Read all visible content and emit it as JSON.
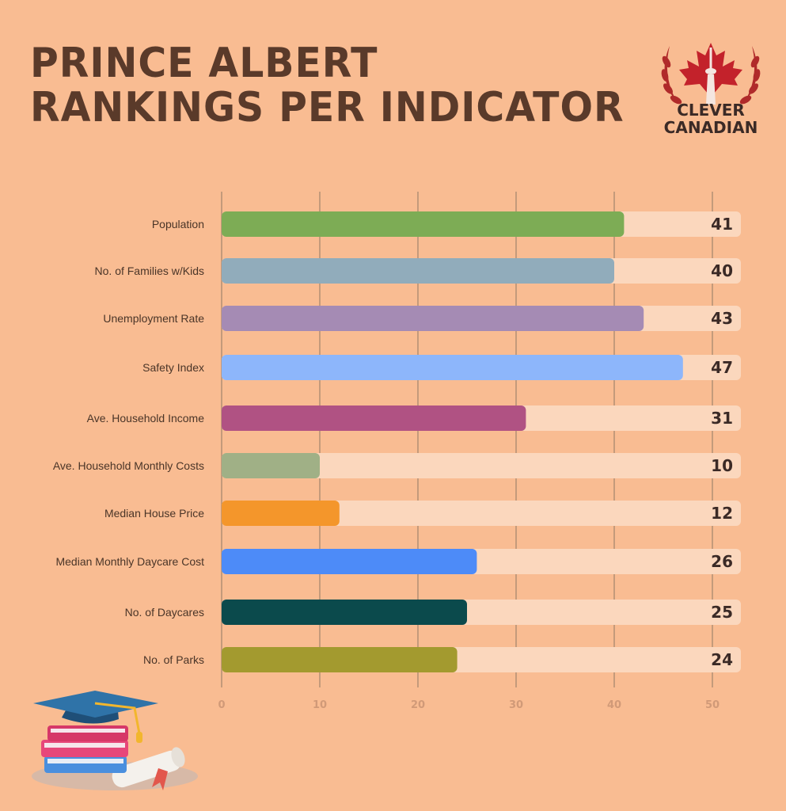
{
  "title": {
    "line1": "PRINCE ALBERT",
    "line2": "RANKINGS PER INDICATOR"
  },
  "logo": {
    "line1": "CLEVER",
    "line2": "CANADIAN",
    "icon": "maple-leaf-cn-tower-icon"
  },
  "colors": {
    "background": "#f9bc92",
    "track": "#fbd7bd",
    "grid": "#a8896f",
    "title": "#5a3a2a"
  },
  "chart_data": {
    "type": "bar",
    "orientation": "horizontal",
    "categories": [
      "Population",
      "No. of Families w/Kids",
      "Unemployment Rate",
      "Safety Index",
      "Ave. Household Income",
      "Ave. Household Monthly Costs",
      "Median House Price",
      "Median Monthly Daycare Cost",
      "No. of Daycares",
      "No. of Parks"
    ],
    "values": [
      41,
      40,
      43,
      47,
      31,
      10,
      12,
      26,
      25,
      24
    ],
    "value_labels": [
      "41",
      "40",
      "43",
      "47",
      "31",
      "10",
      "12",
      "26",
      "25",
      "24"
    ],
    "colors": [
      "#7dac55",
      "#91acbb",
      "#a58bb4",
      "#8db6fb",
      "#b05283",
      "#a0b086",
      "#f4962b",
      "#4d8bf8",
      "#0b4a4c",
      "#a39a2f"
    ],
    "xlim": [
      0,
      50
    ],
    "xticks": [
      "0",
      "10",
      "20",
      "30",
      "40",
      "50"
    ],
    "grid": true,
    "title": "PRINCE ALBERT RANKINGS PER INDICATOR",
    "xlabel": "",
    "ylabel": ""
  }
}
